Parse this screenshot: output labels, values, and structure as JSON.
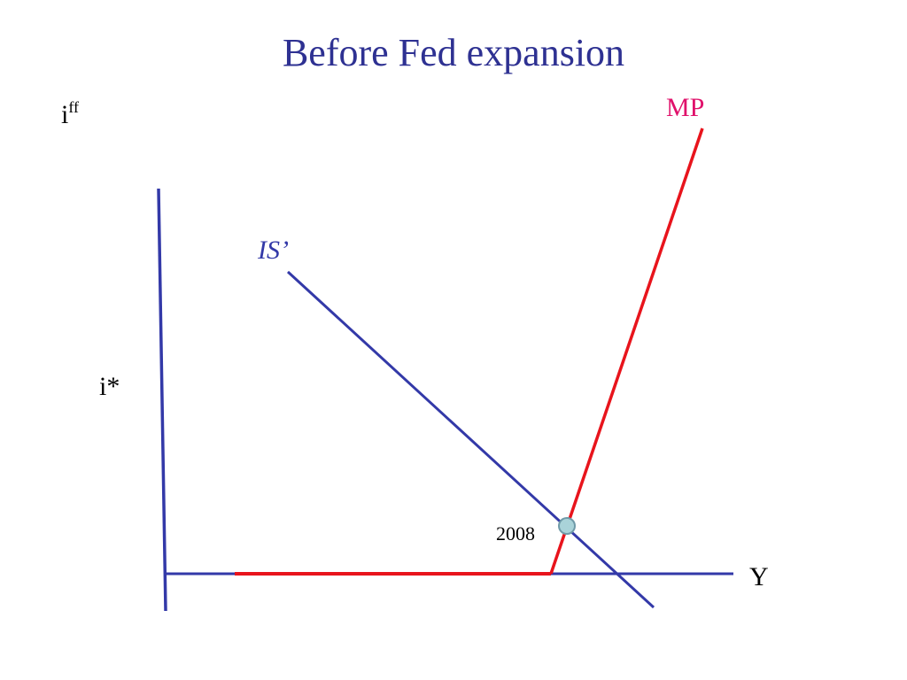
{
  "title": "Before Fed expansion",
  "labels": {
    "y_axis": "i",
    "y_axis_sup": "ff",
    "x_axis": "Y",
    "i_star": "i*",
    "mp": "MP",
    "is": "IS’",
    "point": "2008"
  },
  "colors": {
    "title": "#2e3192",
    "axis": "#3339a8",
    "is_curve": "#3339a8",
    "mp_curve": "#e8141c",
    "mp_label": "#e0116b",
    "point_fill": "#a9d3d9",
    "point_stroke": "#6f9aa8"
  }
}
